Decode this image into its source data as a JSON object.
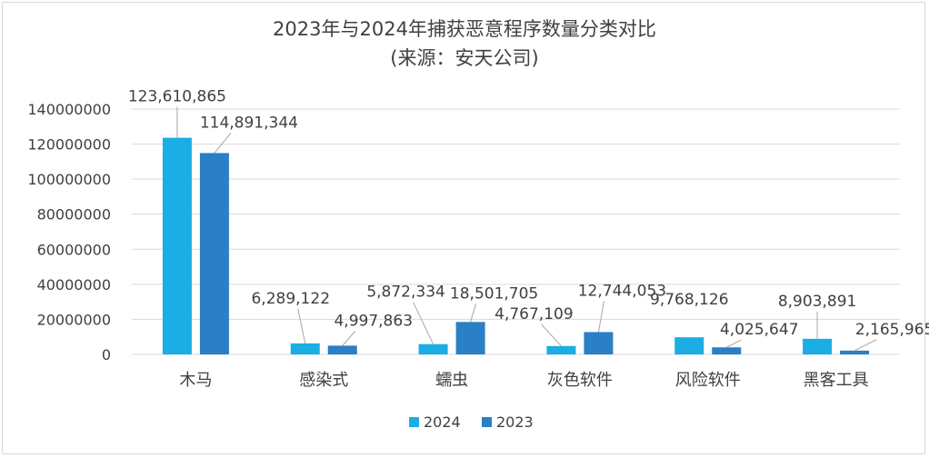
{
  "chart_data": {
    "type": "bar",
    "title": "2023年与2024年捕获恶意程序数量分类对比",
    "subtitle": "(来源：安天公司)",
    "categories": [
      "木马",
      "感染式",
      "蠕虫",
      "灰色软件",
      "风险软件",
      "黑客工具"
    ],
    "series": [
      {
        "name": "2024",
        "color": "#1aaee5",
        "values": [
          123610865,
          6289122,
          5872334,
          4767109,
          9768126,
          8903891
        ],
        "labels": [
          "123,610,865",
          "6,289,122",
          "5,872,334",
          "4,767,109",
          "9,768,126",
          "8,903,891"
        ]
      },
      {
        "name": "2023",
        "color": "#2a7fc6",
        "values": [
          114891344,
          4997863,
          18501705,
          12744053,
          4025647,
          2165965
        ],
        "labels": [
          "114,891,344",
          "4,997,863",
          "18,501,705",
          "12,744,053",
          "4,025,647",
          "2,165,965"
        ]
      }
    ],
    "yticks": [
      "0",
      "20000000",
      "40000000",
      "60000000",
      "80000000",
      "100000000",
      "120000000",
      "140000000"
    ],
    "ylim": [
      0,
      140000000
    ],
    "grid": true,
    "legend": "bottom"
  }
}
